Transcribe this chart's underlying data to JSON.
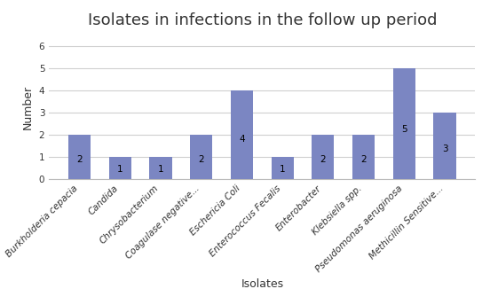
{
  "title": "Isolates in infections in the follow up period",
  "xlabel": "Isolates",
  "ylabel": "Number",
  "categories": [
    "Burkholderia cepacia",
    "Candida",
    "Chrysobacterium",
    "Coagulase negative...",
    "Eschericia Coli",
    "Enterococcus Fecalis",
    "Enterobacter",
    "Klebsiella spp.",
    "Pseudomonas aeruginosa",
    "Methicillin Sensitive..."
  ],
  "values": [
    2,
    1,
    1,
    2,
    4,
    1,
    2,
    2,
    5,
    3
  ],
  "bar_color": "#7b86c2",
  "bar_edge_color": "none",
  "ylim": [
    0,
    6.5
  ],
  "yticks": [
    0,
    1,
    2,
    3,
    4,
    5,
    6
  ],
  "title_fontsize": 13,
  "axis_label_fontsize": 9,
  "tick_label_fontsize": 7.5,
  "bar_label_fontsize": 7.5,
  "background_color": "#ffffff",
  "grid_color": "#d0d0d0",
  "bar_width": 0.55
}
